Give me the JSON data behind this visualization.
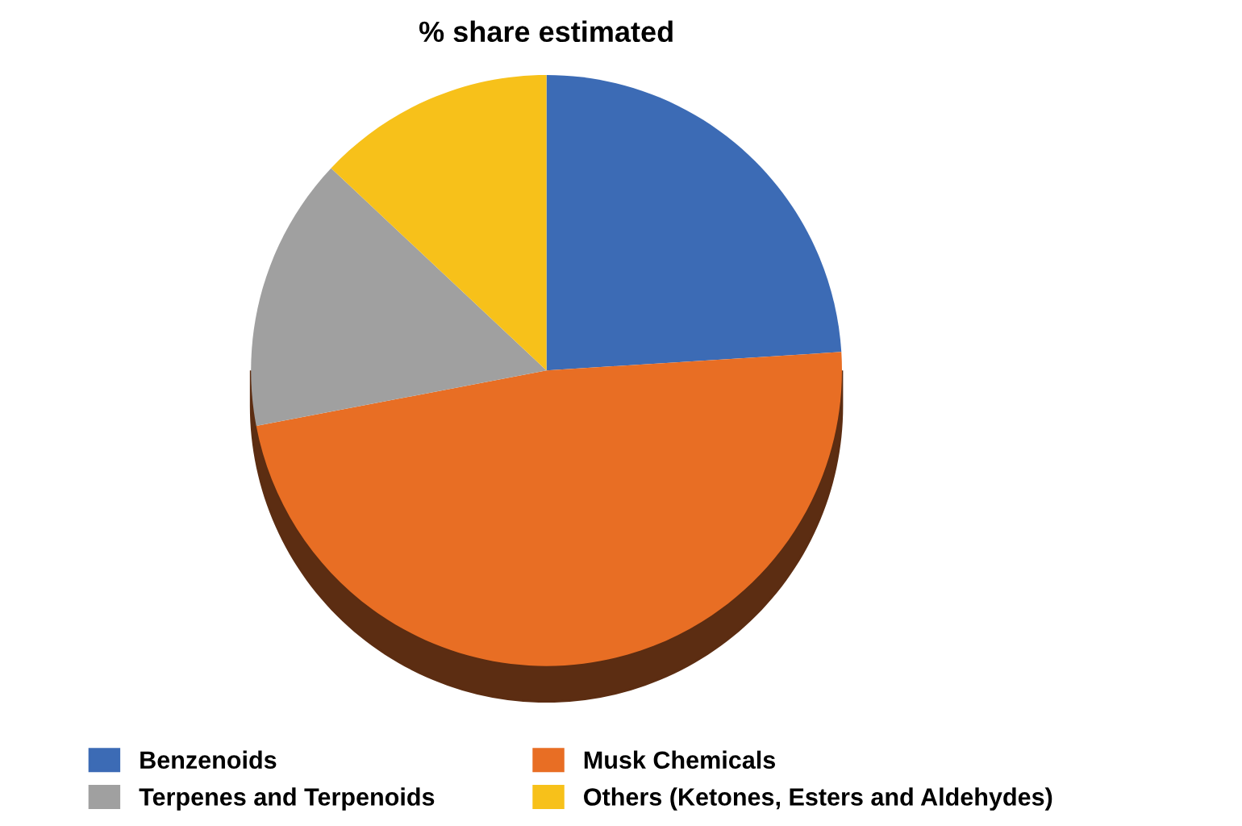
{
  "chart_data": {
    "type": "pie",
    "title": "% share estimated",
    "categories": [
      "Benzenoids",
      "Musk Chemicals",
      "Terpenes and Terpenoids",
      "Others (Ketones, Esters and Aldehydes)"
    ],
    "values": [
      24,
      48,
      15,
      13
    ],
    "colors": [
      "#3c6bb5",
      "#e86e24",
      "#a0a0a0",
      "#f7c11a"
    ],
    "legend": "bottom"
  }
}
